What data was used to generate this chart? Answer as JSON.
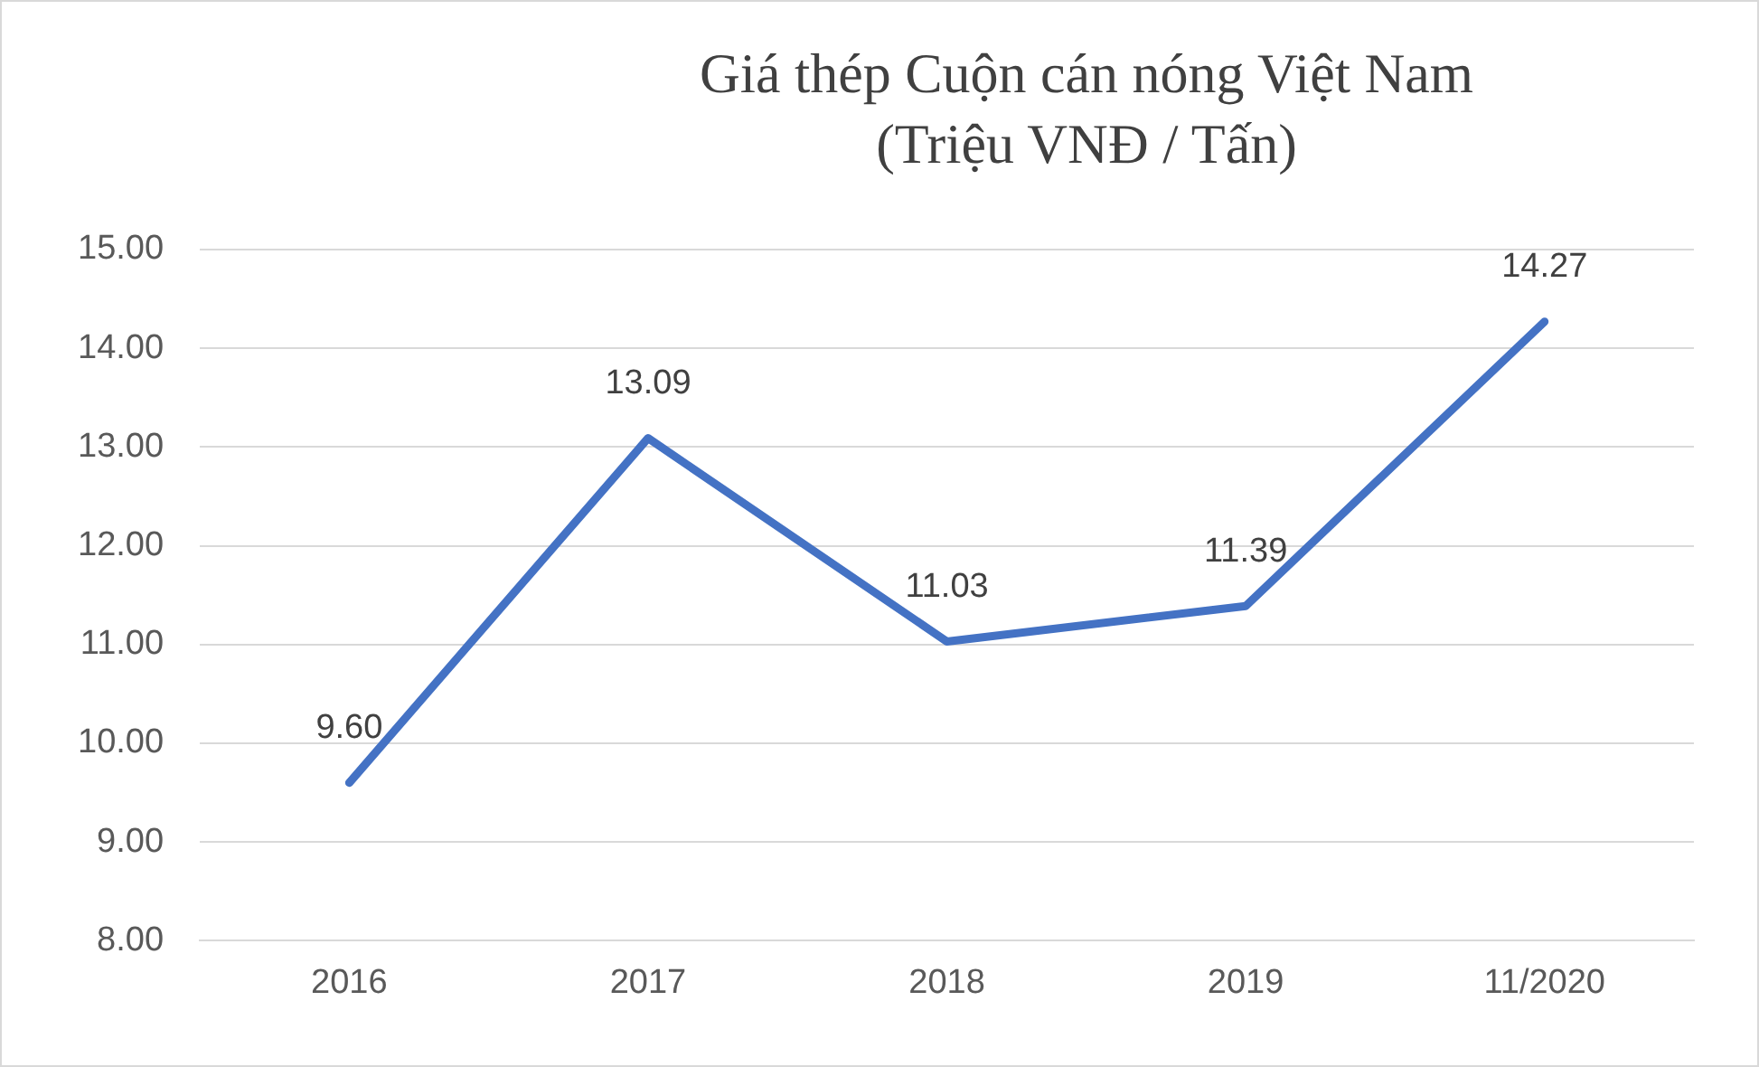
{
  "chart_data": {
    "type": "line",
    "title": "Giá thép Cuộn cán nóng Việt Nam",
    "subtitle": "(Triệu VNĐ / Tấn)",
    "categories": [
      "2016",
      "2017",
      "2018",
      "2019",
      "11/2020"
    ],
    "series": [
      {
        "color": "#4472c4",
        "values": [
          9.6,
          13.09,
          11.03,
          11.39,
          14.27
        ],
        "value_labels": [
          "9.60",
          "13.09",
          "11.03",
          "11.39",
          "14.27"
        ]
      }
    ],
    "ylim": [
      8,
      15
    ],
    "yticks": [
      {
        "value": 8,
        "label": "8.00"
      },
      {
        "value": 9,
        "label": "9.00"
      },
      {
        "value": 10,
        "label": "10.00"
      },
      {
        "value": 11,
        "label": "11.00"
      },
      {
        "value": 12,
        "label": "12.00"
      },
      {
        "value": 13,
        "label": "13.00"
      },
      {
        "value": 14,
        "label": "14.00"
      },
      {
        "value": 15,
        "label": "15.00"
      }
    ],
    "grid": "y",
    "legend": false,
    "marker": "none",
    "line_style": "solid"
  }
}
